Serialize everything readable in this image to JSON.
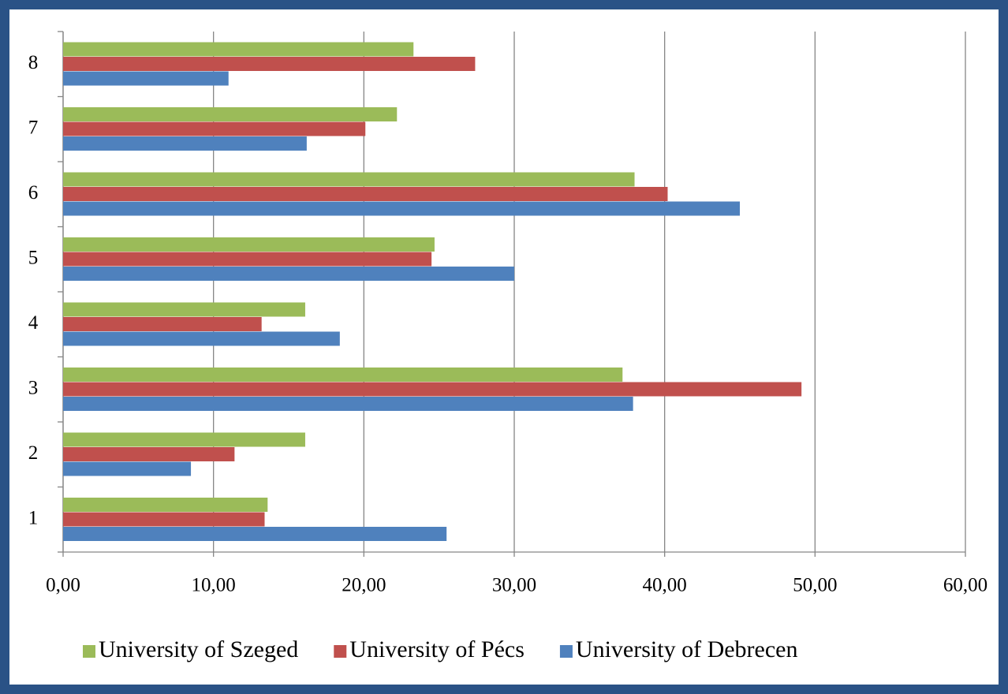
{
  "chart_data": {
    "type": "hbar",
    "categories": [
      "1",
      "2",
      "3",
      "4",
      "5",
      "6",
      "7",
      "8"
    ],
    "series": [
      {
        "name": "University of Szeged",
        "color": "#9bbb59",
        "values": [
          13.6,
          16.1,
          37.2,
          16.1,
          24.7,
          38.0,
          22.2,
          23.3
        ]
      },
      {
        "name": "University of Pécs",
        "color": "#c0504d",
        "values": [
          13.4,
          11.4,
          49.1,
          13.2,
          24.5,
          40.2,
          20.1,
          27.4
        ]
      },
      {
        "name": "University of Debrecen",
        "color": "#4f81bd",
        "values": [
          25.5,
          8.5,
          37.9,
          18.4,
          30.0,
          45.0,
          16.2,
          11.0
        ]
      }
    ],
    "xlim": [
      0,
      60
    ],
    "xticks": [
      {
        "value": 0,
        "label": "0,00"
      },
      {
        "value": 10,
        "label": "10,00"
      },
      {
        "value": 20,
        "label": "20,00"
      },
      {
        "value": 30,
        "label": "30,00"
      },
      {
        "value": 40,
        "label": "40,00"
      },
      {
        "value": 50,
        "label": "50,00"
      },
      {
        "value": 60,
        "label": "60,00"
      }
    ],
    "grid": true,
    "legend": "bottom"
  }
}
